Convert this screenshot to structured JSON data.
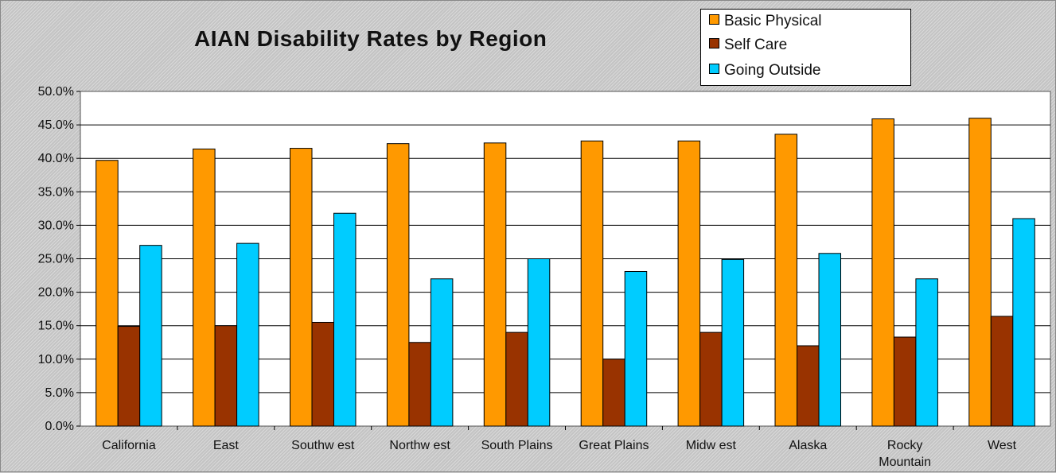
{
  "chart_data": {
    "type": "bar",
    "title": "AIAN Disability Rates by Region",
    "xlabel": "",
    "ylabel": "",
    "ylim": [
      0,
      50
    ],
    "yticks": [
      "0.0%",
      "5.0%",
      "10.0%",
      "15.0%",
      "20.0%",
      "25.0%",
      "30.0%",
      "35.0%",
      "40.0%",
      "45.0%",
      "50.0%"
    ],
    "grid": true,
    "legend_position": "top-right",
    "categories": [
      [
        "California"
      ],
      [
        "East"
      ],
      [
        "Southw est"
      ],
      [
        "Northw est"
      ],
      [
        "South Plains"
      ],
      [
        "Great Plains"
      ],
      [
        "Midw est"
      ],
      [
        "Alaska"
      ],
      [
        "Rocky",
        "Mountain"
      ],
      [
        "West"
      ]
    ],
    "series": [
      {
        "name": "Basic Physical",
        "color": "#ff9900",
        "values": [
          39.7,
          41.4,
          41.5,
          42.2,
          42.3,
          42.6,
          42.6,
          43.6,
          45.9,
          46.0
        ]
      },
      {
        "name": "Self Care",
        "color": "#993300",
        "values": [
          14.9,
          15.0,
          15.5,
          12.5,
          14.0,
          10.0,
          14.0,
          12.0,
          13.3,
          16.4
        ]
      },
      {
        "name": "Going Outside",
        "color": "#00ccff",
        "values": [
          27.0,
          27.3,
          31.8,
          22.0,
          25.0,
          23.1,
          24.9,
          25.8,
          22.0,
          31.0
        ]
      }
    ]
  }
}
